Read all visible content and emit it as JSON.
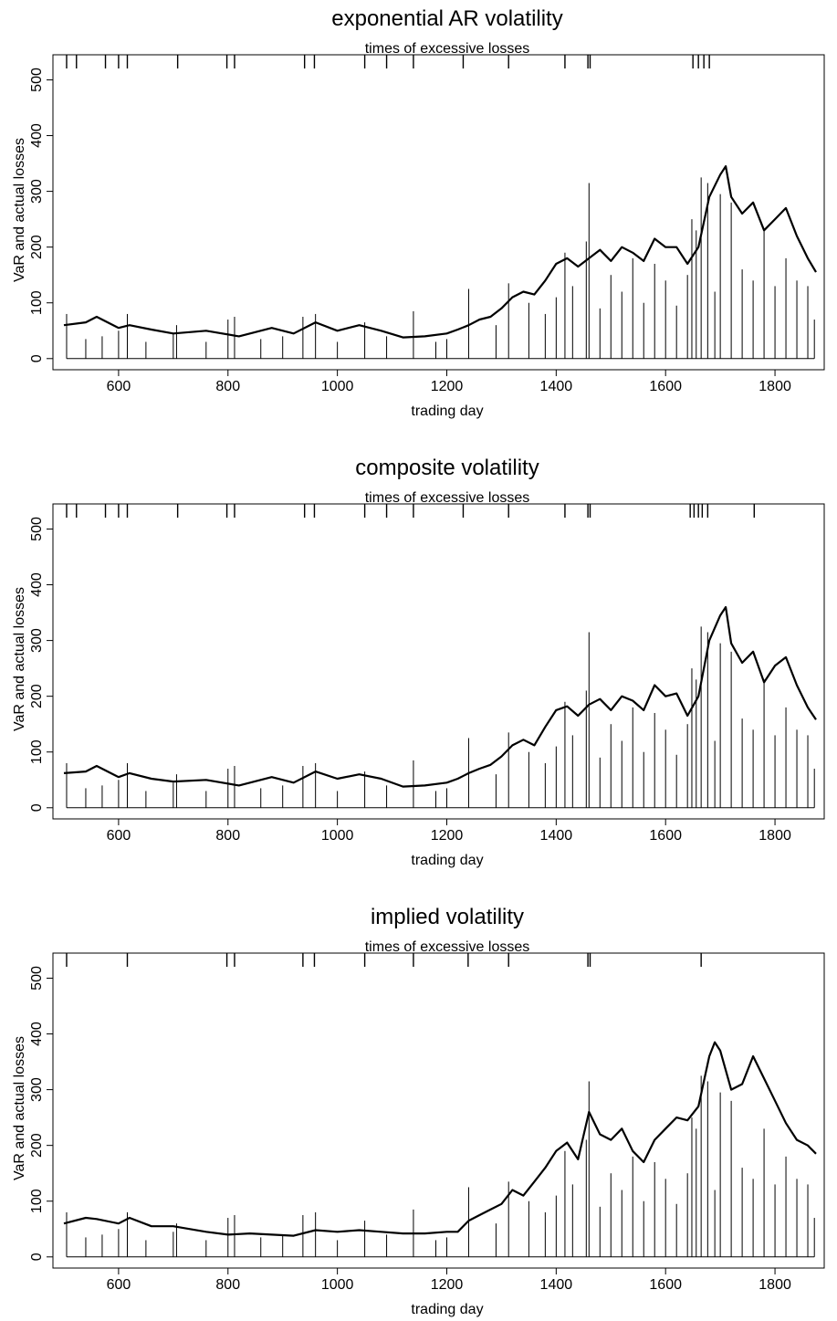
{
  "chart_data": [
    {
      "type": "line",
      "title": "exponential AR volatility",
      "subtitle": "times of excessive losses",
      "xlabel": "trading day",
      "ylabel": "VaR and actual losses",
      "xlim": [
        480,
        1890
      ],
      "ylim": [
        -20,
        545
      ],
      "xticks": [
        600,
        800,
        1000,
        1200,
        1400,
        1600,
        1800
      ],
      "yticks": [
        0,
        100,
        200,
        300,
        400,
        500
      ],
      "grid": false,
      "var_series": {
        "name": "VaR",
        "x": [
          500,
          540,
          560,
          600,
          620,
          660,
          700,
          760,
          820,
          880,
          920,
          960,
          1000,
          1040,
          1080,
          1120,
          1160,
          1200,
          1220,
          1240,
          1260,
          1280,
          1300,
          1320,
          1340,
          1360,
          1380,
          1400,
          1420,
          1440,
          1460,
          1480,
          1500,
          1520,
          1540,
          1560,
          1580,
          1600,
          1620,
          1640,
          1660,
          1680,
          1700,
          1710,
          1720,
          1740,
          1760,
          1780,
          1800,
          1820,
          1840,
          1860,
          1875
        ],
        "y": [
          60,
          65,
          75,
          55,
          60,
          52,
          45,
          50,
          40,
          55,
          45,
          65,
          50,
          60,
          50,
          38,
          40,
          45,
          52,
          60,
          70,
          75,
          90,
          110,
          120,
          115,
          140,
          170,
          180,
          165,
          180,
          195,
          175,
          200,
          190,
          175,
          215,
          200,
          200,
          170,
          200,
          290,
          330,
          345,
          290,
          260,
          280,
          230,
          250,
          270,
          220,
          180,
          155
        ]
      },
      "loss_spikes": {
        "name": "actual losses",
        "x": [
          505,
          540,
          570,
          600,
          616,
          650,
          700,
          706,
          760,
          800,
          812,
          860,
          900,
          937,
          960,
          1000,
          1050,
          1090,
          1139,
          1180,
          1200,
          1240,
          1290,
          1313,
          1350,
          1380,
          1400,
          1416,
          1430,
          1455,
          1460,
          1480,
          1500,
          1520,
          1540,
          1560,
          1580,
          1600,
          1620,
          1640,
          1648,
          1656,
          1665,
          1677,
          1690,
          1700,
          1720,
          1740,
          1760,
          1780,
          1800,
          1820,
          1840,
          1860,
          1872
        ],
        "y": [
          80,
          35,
          40,
          50,
          80,
          30,
          45,
          60,
          30,
          70,
          75,
          35,
          40,
          75,
          80,
          30,
          65,
          40,
          85,
          30,
          35,
          125,
          60,
          135,
          100,
          80,
          110,
          190,
          130,
          210,
          315,
          90,
          150,
          120,
          180,
          100,
          170,
          140,
          95,
          150,
          250,
          230,
          325,
          315,
          120,
          295,
          280,
          160,
          140,
          230,
          130,
          180,
          140,
          130,
          70
        ]
      },
      "exceedance_days": [
        505,
        523,
        576,
        600,
        616,
        708,
        798,
        812,
        940,
        958,
        1050,
        1090,
        1139,
        1230,
        1313,
        1416,
        1458,
        1462,
        1650,
        1660,
        1670,
        1680
      ]
    },
    {
      "type": "line",
      "title": "composite volatility",
      "subtitle": "times of excessive losses",
      "xlabel": "trading day",
      "ylabel": "VaR and actual losses",
      "xlim": [
        480,
        1890
      ],
      "ylim": [
        -20,
        545
      ],
      "xticks": [
        600,
        800,
        1000,
        1200,
        1400,
        1600,
        1800
      ],
      "yticks": [
        0,
        100,
        200,
        300,
        400,
        500
      ],
      "grid": false,
      "var_series": {
        "name": "VaR",
        "x": [
          500,
          540,
          560,
          600,
          620,
          660,
          700,
          760,
          820,
          880,
          920,
          960,
          1000,
          1040,
          1080,
          1120,
          1160,
          1200,
          1220,
          1240,
          1260,
          1280,
          1300,
          1320,
          1340,
          1360,
          1380,
          1400,
          1420,
          1440,
          1460,
          1480,
          1500,
          1520,
          1540,
          1560,
          1580,
          1600,
          1620,
          1640,
          1660,
          1680,
          1700,
          1710,
          1720,
          1740,
          1760,
          1780,
          1800,
          1820,
          1840,
          1860,
          1875
        ],
        "y": [
          62,
          65,
          75,
          55,
          62,
          52,
          47,
          50,
          40,
          55,
          45,
          65,
          52,
          60,
          52,
          38,
          40,
          45,
          52,
          62,
          70,
          77,
          92,
          112,
          122,
          112,
          145,
          175,
          182,
          165,
          185,
          195,
          175,
          200,
          192,
          175,
          220,
          200,
          205,
          165,
          200,
          300,
          345,
          360,
          295,
          260,
          280,
          225,
          255,
          270,
          220,
          180,
          158
        ]
      },
      "loss_spikes": {
        "name": "actual losses",
        "x": [
          505,
          540,
          570,
          600,
          616,
          650,
          700,
          706,
          760,
          800,
          812,
          860,
          900,
          937,
          960,
          1000,
          1050,
          1090,
          1139,
          1180,
          1200,
          1240,
          1290,
          1313,
          1350,
          1380,
          1400,
          1416,
          1430,
          1455,
          1460,
          1480,
          1500,
          1520,
          1540,
          1560,
          1580,
          1600,
          1620,
          1640,
          1648,
          1656,
          1665,
          1677,
          1690,
          1700,
          1720,
          1740,
          1760,
          1780,
          1800,
          1820,
          1840,
          1860,
          1872
        ],
        "y": [
          80,
          35,
          40,
          50,
          80,
          30,
          45,
          60,
          30,
          70,
          75,
          35,
          40,
          75,
          80,
          30,
          65,
          40,
          85,
          30,
          35,
          125,
          60,
          135,
          100,
          80,
          110,
          190,
          130,
          210,
          315,
          90,
          150,
          120,
          180,
          100,
          170,
          140,
          95,
          150,
          250,
          230,
          325,
          315,
          120,
          295,
          280,
          160,
          140,
          230,
          130,
          180,
          140,
          130,
          70
        ]
      },
      "exceedance_days": [
        505,
        523,
        576,
        600,
        616,
        708,
        798,
        812,
        940,
        958,
        1050,
        1090,
        1139,
        1230,
        1313,
        1416,
        1458,
        1462,
        1645,
        1652,
        1660,
        1667,
        1677,
        1762
      ]
    },
    {
      "type": "line",
      "title": "implied volatility",
      "subtitle": "times of excessive losses",
      "xlabel": "trading day",
      "ylabel": "VaR and actual losses",
      "xlim": [
        480,
        1890
      ],
      "ylim": [
        -20,
        545
      ],
      "xticks": [
        600,
        800,
        1000,
        1200,
        1400,
        1600,
        1800
      ],
      "yticks": [
        0,
        100,
        200,
        300,
        400,
        500
      ],
      "grid": false,
      "var_series": {
        "name": "VaR",
        "x": [
          500,
          540,
          560,
          600,
          620,
          660,
          700,
          760,
          800,
          840,
          880,
          920,
          960,
          1000,
          1040,
          1080,
          1120,
          1160,
          1200,
          1220,
          1240,
          1260,
          1280,
          1300,
          1320,
          1340,
          1360,
          1380,
          1400,
          1420,
          1440,
          1460,
          1480,
          1500,
          1520,
          1540,
          1560,
          1580,
          1600,
          1620,
          1640,
          1660,
          1680,
          1690,
          1700,
          1720,
          1740,
          1760,
          1780,
          1800,
          1820,
          1840,
          1860,
          1875
        ],
        "y": [
          60,
          70,
          68,
          60,
          70,
          55,
          55,
          45,
          40,
          42,
          40,
          38,
          48,
          45,
          48,
          45,
          42,
          42,
          45,
          45,
          65,
          75,
          85,
          95,
          120,
          110,
          135,
          160,
          190,
          205,
          175,
          260,
          220,
          210,
          230,
          190,
          170,
          210,
          230,
          250,
          245,
          270,
          360,
          385,
          370,
          300,
          310,
          360,
          320,
          280,
          240,
          210,
          200,
          185
        ]
      },
      "loss_spikes": {
        "name": "actual losses",
        "x": [
          505,
          540,
          570,
          600,
          616,
          650,
          700,
          706,
          760,
          800,
          812,
          860,
          900,
          937,
          960,
          1000,
          1050,
          1090,
          1139,
          1180,
          1200,
          1240,
          1290,
          1313,
          1350,
          1380,
          1400,
          1416,
          1430,
          1455,
          1460,
          1480,
          1500,
          1520,
          1540,
          1560,
          1580,
          1600,
          1620,
          1640,
          1648,
          1656,
          1665,
          1677,
          1690,
          1700,
          1720,
          1740,
          1760,
          1780,
          1800,
          1820,
          1840,
          1860,
          1872
        ],
        "y": [
          80,
          35,
          40,
          50,
          80,
          30,
          45,
          60,
          30,
          70,
          75,
          35,
          40,
          75,
          80,
          30,
          65,
          40,
          85,
          30,
          35,
          125,
          60,
          135,
          100,
          80,
          110,
          190,
          130,
          210,
          315,
          90,
          150,
          120,
          180,
          100,
          170,
          140,
          95,
          150,
          250,
          230,
          325,
          315,
          120,
          295,
          280,
          160,
          140,
          230,
          130,
          180,
          140,
          130,
          70
        ]
      },
      "exceedance_days": [
        505,
        616,
        798,
        812,
        937,
        958,
        1050,
        1139,
        1239,
        1313,
        1458,
        1462,
        1665
      ]
    }
  ]
}
